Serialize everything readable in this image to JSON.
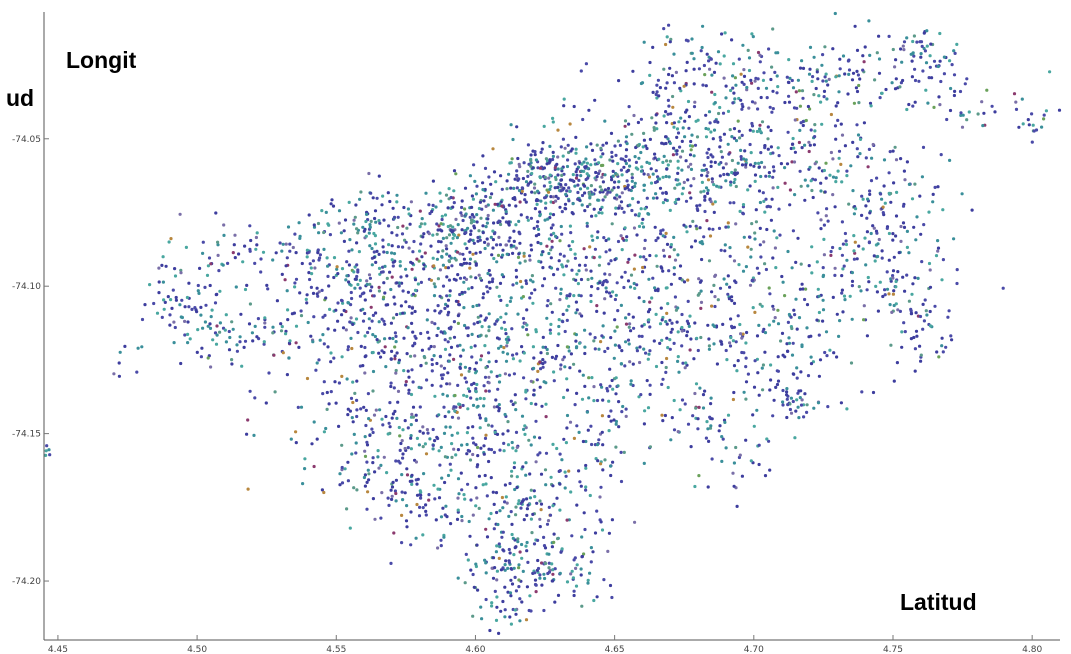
{
  "chart_data": {
    "type": "scatter",
    "title": "",
    "xlabel": "Latitud",
    "ylabel_parts": [
      "Longit",
      "ud"
    ],
    "xlim": [
      4.445,
      4.81
    ],
    "ylim": [
      -74.22,
      -74.007
    ],
    "x_ticks": [
      {
        "value": 4.45,
        "label": "4.45"
      },
      {
        "value": 4.5,
        "label": "4.50"
      },
      {
        "value": 4.55,
        "label": "4.55"
      },
      {
        "value": 4.6,
        "label": "4.60"
      },
      {
        "value": 4.65,
        "label": "4.65"
      },
      {
        "value": 4.7,
        "label": "4.70"
      },
      {
        "value": 4.75,
        "label": "4.75"
      },
      {
        "value": 4.8,
        "label": "4.80"
      }
    ],
    "y_ticks": [
      {
        "value": -74.05,
        "label": "-74.05"
      },
      {
        "value": -74.1,
        "label": "-74.10"
      },
      {
        "value": -74.15,
        "label": "-74.15"
      },
      {
        "value": -74.2,
        "label": "-74.20"
      }
    ],
    "grid": false,
    "legend": "none",
    "point_colors": [
      "#3d3d9e",
      "#4a4aa8",
      "#3a8f9a",
      "#49a7a0",
      "#5c9a8a",
      "#7a6fa8",
      "#8b3a6e",
      "#b8873e",
      "#6aa15a"
    ],
    "clusters": [
      {
        "x": 4.445,
        "y": -74.155,
        "sx": 0.002,
        "sy": 0.002,
        "n": 12
      },
      {
        "x": 4.475,
        "y": -74.125,
        "sx": 0.004,
        "sy": 0.004,
        "n": 8
      },
      {
        "x": 4.495,
        "y": -74.105,
        "sx": 0.008,
        "sy": 0.008,
        "n": 60
      },
      {
        "x": 4.515,
        "y": -74.117,
        "sx": 0.012,
        "sy": 0.006,
        "n": 70
      },
      {
        "x": 4.51,
        "y": -74.09,
        "sx": 0.006,
        "sy": 0.005,
        "n": 25
      },
      {
        "x": 4.54,
        "y": -74.09,
        "sx": 0.018,
        "sy": 0.008,
        "n": 90
      },
      {
        "x": 4.555,
        "y": -74.11,
        "sx": 0.015,
        "sy": 0.012,
        "n": 120
      },
      {
        "x": 4.56,
        "y": -74.078,
        "sx": 0.008,
        "sy": 0.006,
        "n": 40
      },
      {
        "x": 4.58,
        "y": -74.095,
        "sx": 0.02,
        "sy": 0.012,
        "n": 230
      },
      {
        "x": 4.6,
        "y": -74.08,
        "sx": 0.015,
        "sy": 0.008,
        "n": 220
      },
      {
        "x": 4.585,
        "y": -74.12,
        "sx": 0.02,
        "sy": 0.012,
        "n": 180
      },
      {
        "x": 4.56,
        "y": -74.15,
        "sx": 0.018,
        "sy": 0.012,
        "n": 150
      },
      {
        "x": 4.575,
        "y": -74.17,
        "sx": 0.01,
        "sy": 0.008,
        "n": 70
      },
      {
        "x": 4.6,
        "y": -74.15,
        "sx": 0.015,
        "sy": 0.015,
        "n": 160
      },
      {
        "x": 4.62,
        "y": -74.125,
        "sx": 0.02,
        "sy": 0.015,
        "n": 200
      },
      {
        "x": 4.615,
        "y": -74.175,
        "sx": 0.015,
        "sy": 0.012,
        "n": 130
      },
      {
        "x": 4.62,
        "y": -74.195,
        "sx": 0.012,
        "sy": 0.008,
        "n": 160
      },
      {
        "x": 4.61,
        "y": -74.21,
        "sx": 0.005,
        "sy": 0.004,
        "n": 20
      },
      {
        "x": 4.63,
        "y": -74.065,
        "sx": 0.015,
        "sy": 0.006,
        "n": 200
      },
      {
        "x": 4.65,
        "y": -74.062,
        "sx": 0.02,
        "sy": 0.008,
        "n": 250
      },
      {
        "x": 4.64,
        "y": -74.095,
        "sx": 0.018,
        "sy": 0.012,
        "n": 170
      },
      {
        "x": 4.65,
        "y": -74.12,
        "sx": 0.015,
        "sy": 0.015,
        "n": 110
      },
      {
        "x": 4.645,
        "y": -74.155,
        "sx": 0.008,
        "sy": 0.012,
        "n": 60
      },
      {
        "x": 4.68,
        "y": -74.05,
        "sx": 0.02,
        "sy": 0.01,
        "n": 220
      },
      {
        "x": 4.69,
        "y": -74.03,
        "sx": 0.02,
        "sy": 0.008,
        "n": 130
      },
      {
        "x": 4.68,
        "y": -74.085,
        "sx": 0.02,
        "sy": 0.012,
        "n": 180
      },
      {
        "x": 4.675,
        "y": -74.12,
        "sx": 0.012,
        "sy": 0.012,
        "n": 90
      },
      {
        "x": 4.68,
        "y": -74.145,
        "sx": 0.006,
        "sy": 0.005,
        "n": 30
      },
      {
        "x": 4.695,
        "y": -74.16,
        "sx": 0.008,
        "sy": 0.006,
        "n": 30
      },
      {
        "x": 4.71,
        "y": -74.12,
        "sx": 0.012,
        "sy": 0.012,
        "n": 130
      },
      {
        "x": 4.715,
        "y": -74.138,
        "sx": 0.005,
        "sy": 0.004,
        "n": 30
      },
      {
        "x": 4.72,
        "y": -74.06,
        "sx": 0.02,
        "sy": 0.01,
        "n": 140
      },
      {
        "x": 4.735,
        "y": -74.03,
        "sx": 0.02,
        "sy": 0.008,
        "n": 140
      },
      {
        "x": 4.74,
        "y": -74.095,
        "sx": 0.015,
        "sy": 0.01,
        "n": 140
      },
      {
        "x": 4.75,
        "y": -74.07,
        "sx": 0.012,
        "sy": 0.01,
        "n": 70
      },
      {
        "x": 4.76,
        "y": -74.115,
        "sx": 0.006,
        "sy": 0.01,
        "n": 50
      },
      {
        "x": 4.76,
        "y": -74.02,
        "sx": 0.005,
        "sy": 0.004,
        "n": 35
      },
      {
        "x": 4.785,
        "y": -74.04,
        "sx": 0.01,
        "sy": 0.004,
        "n": 25
      },
      {
        "x": 4.8,
        "y": -74.045,
        "sx": 0.003,
        "sy": 0.003,
        "n": 12
      },
      {
        "x": 4.668,
        "y": -74.015,
        "sx": 0.002,
        "sy": 0.002,
        "n": 6
      }
    ]
  }
}
